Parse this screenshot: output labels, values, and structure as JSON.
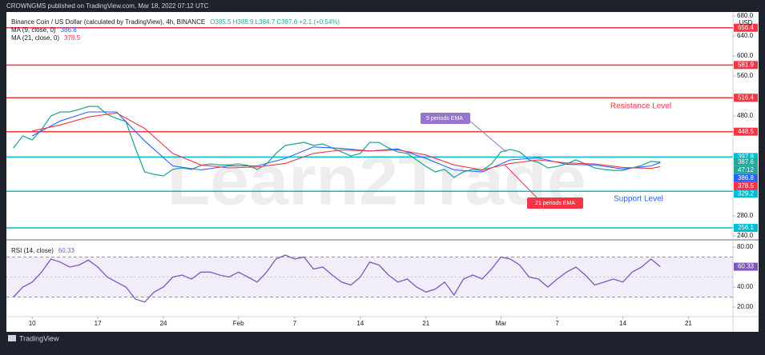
{
  "header": {
    "publisher": "CROWNGMS published on TradingView.com, Mar 18, 2022 07:12 UTC"
  },
  "watermark": "Learn2Trade",
  "footer": {
    "brand": "TradingView"
  },
  "chart_data": [
    {
      "type": "line",
      "ohlc": "O385.5 H388.9 L384.7 C387.6 +2.1 (+0.54%)",
      "currency": "USD",
      "countdown": "47:12",
      "x": [
        "2022-01-08",
        "2022-01-09",
        "2022-01-10",
        "2022-01-11",
        "2022-01-12",
        "2022-01-13",
        "2022-01-14",
        "2022-01-15",
        "2022-01-16",
        "2022-01-17",
        "2022-01-18",
        "2022-01-19",
        "2022-01-20",
        "2022-01-21",
        "2022-01-22",
        "2022-01-23",
        "2022-01-24",
        "2022-01-25",
        "2022-01-26",
        "2022-01-27",
        "2022-01-28",
        "2022-01-29",
        "2022-01-30",
        "2022-01-31",
        "2022-02-01",
        "2022-02-02",
        "2022-02-03",
        "2022-02-04",
        "2022-02-05",
        "2022-02-06",
        "2022-02-07",
        "2022-02-08",
        "2022-02-09",
        "2022-02-10",
        "2022-02-11",
        "2022-02-12",
        "2022-02-13",
        "2022-02-14",
        "2022-02-15",
        "2022-02-16",
        "2022-02-17",
        "2022-02-18",
        "2022-02-19",
        "2022-02-20",
        "2022-02-21",
        "2022-02-22",
        "2022-02-23",
        "2022-02-24",
        "2022-02-25",
        "2022-02-26",
        "2022-02-27",
        "2022-02-28",
        "2022-03-01",
        "2022-03-02",
        "2022-03-03",
        "2022-03-04",
        "2022-03-05",
        "2022-03-06",
        "2022-03-07",
        "2022-03-08",
        "2022-03-09",
        "2022-03-10",
        "2022-03-11",
        "2022-03-12",
        "2022-03-13",
        "2022-03-14",
        "2022-03-15",
        "2022-03-16",
        "2022-03-17",
        "2022-03-18"
      ],
      "xlim": [
        "2022-01-07T06:00Z",
        "2022-03-25T18:00Z"
      ],
      "ylim": [
        232,
        688
      ],
      "yticks": [
        {
          "value": 680,
          "label": "680.0"
        },
        {
          "value": 640,
          "label": "640.0"
        },
        {
          "value": 600,
          "label": "600.0"
        },
        {
          "value": 560,
          "label": "560.0"
        },
        {
          "value": 480,
          "label": "480.0"
        },
        {
          "value": 280,
          "label": "280.0"
        },
        {
          "value": 240,
          "label": "240.0"
        }
      ],
      "series": [
        {
          "name": "Binance Coin / US Dollar (calculated by TradingView), 4h, BINANCE",
          "color": "#26a69a",
          "values": [
            416,
            440,
            432,
            453,
            480,
            488,
            488,
            493,
            499,
            499,
            483,
            475,
            469,
            416,
            368,
            363,
            360,
            373,
            376,
            373,
            381,
            384,
            382,
            382,
            384,
            381,
            373,
            384,
            405,
            421,
            424,
            427,
            421,
            424,
            416,
            408,
            400,
            405,
            427,
            427,
            416,
            408,
            405,
            392,
            379,
            368,
            373,
            357,
            368,
            373,
            371,
            384,
            408,
            413,
            408,
            392,
            387,
            376,
            379,
            384,
            392,
            384,
            376,
            373,
            371,
            371,
            376,
            381,
            389,
            387.6
          ]
        },
        {
          "name": "MA (9, close, 0)",
          "color": "#2962ff",
          "x": [
            "2022-01-10",
            "2022-01-13",
            "2022-01-16",
            "2022-01-19",
            "2022-01-22",
            "2022-01-25",
            "2022-01-28",
            "2022-01-31",
            "2022-02-03",
            "2022-02-06",
            "2022-02-09",
            "2022-02-12",
            "2022-02-15",
            "2022-02-18",
            "2022-02-21",
            "2022-02-24",
            "2022-02-27",
            "2022-03-02",
            "2022-03-05",
            "2022-03-08",
            "2022-03-11",
            "2022-03-14",
            "2022-03-17",
            "2022-03-18"
          ],
          "values": [
            440,
            470,
            488,
            488,
            430,
            380,
            372,
            380,
            380,
            395,
            418,
            415,
            410,
            414,
            395,
            372,
            368,
            392,
            396,
            383,
            382,
            374,
            380,
            386.8
          ]
        },
        {
          "name": "MA (21, close, 0)",
          "color": "#f23645",
          "x": [
            "2022-01-10",
            "2022-01-13",
            "2022-01-16",
            "2022-01-19",
            "2022-01-22",
            "2022-01-25",
            "2022-01-28",
            "2022-01-31",
            "2022-02-03",
            "2022-02-06",
            "2022-02-09",
            "2022-02-12",
            "2022-02-15",
            "2022-02-18",
            "2022-02-21",
            "2022-02-24",
            "2022-02-27",
            "2022-03-02",
            "2022-03-05",
            "2022-03-08",
            "2022-03-11",
            "2022-03-14",
            "2022-03-17",
            "2022-03-18"
          ],
          "values": [
            450,
            462,
            478,
            486,
            455,
            405,
            382,
            376,
            378,
            385,
            405,
            412,
            410,
            412,
            402,
            382,
            372,
            385,
            392,
            386,
            384,
            377,
            375,
            378.5
          ]
        }
      ],
      "hlines": [
        {
          "value": 656.4,
          "color": "#f23645"
        },
        {
          "value": 581.9,
          "color": "#f23645"
        },
        {
          "value": 516.4,
          "color": "#f23645"
        },
        {
          "value": 448.5,
          "color": "#f23645"
        },
        {
          "value": 397.8,
          "color": "#00bcd4"
        },
        {
          "value": 329.2,
          "color": "#00bcd4"
        },
        {
          "value": 256.1,
          "color": "#00bcd4"
        }
      ],
      "annotations": [
        {
          "text": "Resistance Level",
          "color": "#f23645"
        },
        {
          "text": "Support Level",
          "color": "#2962ff"
        },
        {
          "text": "9 periods EMA",
          "color": "#9575cd"
        },
        {
          "text": "21 periods EMA",
          "color": "#f23645"
        }
      ]
    },
    {
      "type": "line",
      "x": [
        "2022-01-08",
        "2022-01-09",
        "2022-01-10",
        "2022-01-11",
        "2022-01-12",
        "2022-01-13",
        "2022-01-14",
        "2022-01-15",
        "2022-01-16",
        "2022-01-17",
        "2022-01-18",
        "2022-01-19",
        "2022-01-20",
        "2022-01-21",
        "2022-01-22",
        "2022-01-23",
        "2022-01-24",
        "2022-01-25",
        "2022-01-26",
        "2022-01-27",
        "2022-01-28",
        "2022-01-29",
        "2022-01-30",
        "2022-01-31",
        "2022-02-01",
        "2022-02-02",
        "2022-02-03",
        "2022-02-04",
        "2022-02-05",
        "2022-02-06",
        "2022-02-07",
        "2022-02-08",
        "2022-02-09",
        "2022-02-10",
        "2022-02-11",
        "2022-02-12",
        "2022-02-13",
        "2022-02-14",
        "2022-02-15",
        "2022-02-16",
        "2022-02-17",
        "2022-02-18",
        "2022-02-19",
        "2022-02-20",
        "2022-02-21",
        "2022-02-22",
        "2022-02-23",
        "2022-02-24",
        "2022-02-25",
        "2022-02-26",
        "2022-02-27",
        "2022-02-28",
        "2022-03-01",
        "2022-03-02",
        "2022-03-03",
        "2022-03-04",
        "2022-03-05",
        "2022-03-06",
        "2022-03-07",
        "2022-03-08",
        "2022-03-09",
        "2022-03-10",
        "2022-03-11",
        "2022-03-12",
        "2022-03-13",
        "2022-03-14",
        "2022-03-15",
        "2022-03-16",
        "2022-03-17",
        "2022-03-18"
      ],
      "xlim": [
        "2022-01-07T06:00Z",
        "2022-03-25T18:00Z"
      ],
      "xticks": [
        {
          "value": "2022-01-10",
          "label": "10"
        },
        {
          "value": "2022-01-17",
          "label": "17"
        },
        {
          "value": "2022-01-24",
          "label": "24"
        },
        {
          "value": "2022-02-01",
          "label": "Feb"
        },
        {
          "value": "2022-02-07",
          "label": "7"
        },
        {
          "value": "2022-02-14",
          "label": "14"
        },
        {
          "value": "2022-02-21",
          "label": "21"
        },
        {
          "value": "2022-03-01",
          "label": "Mar"
        },
        {
          "value": "2022-03-07",
          "label": "7"
        },
        {
          "value": "2022-03-14",
          "label": "14"
        },
        {
          "value": "2022-03-21",
          "label": "21"
        }
      ],
      "ylim": [
        10.4,
        87.2
      ],
      "yticks": [
        {
          "value": 80,
          "label": "80.00"
        },
        {
          "value": 40,
          "label": "40.00"
        },
        {
          "value": 20,
          "label": "20.00"
        }
      ],
      "band": [
        30,
        70
      ],
      "midline": 50,
      "series": [
        {
          "name": "RSI (14, close)",
          "color": "#7e57c2",
          "values": [
            30,
            40,
            45,
            55,
            68,
            65,
            60,
            62,
            67,
            60,
            50,
            45,
            40,
            28,
            25,
            35,
            40,
            50,
            52,
            48,
            55,
            55,
            52,
            50,
            55,
            50,
            45,
            55,
            68,
            72,
            68,
            70,
            58,
            60,
            52,
            45,
            42,
            50,
            65,
            62,
            52,
            45,
            48,
            40,
            35,
            38,
            45,
            32,
            48,
            52,
            48,
            58,
            70,
            68,
            62,
            50,
            48,
            40,
            48,
            55,
            60,
            52,
            42,
            45,
            48,
            45,
            55,
            60,
            68,
            60.33
          ]
        }
      ]
    }
  ]
}
